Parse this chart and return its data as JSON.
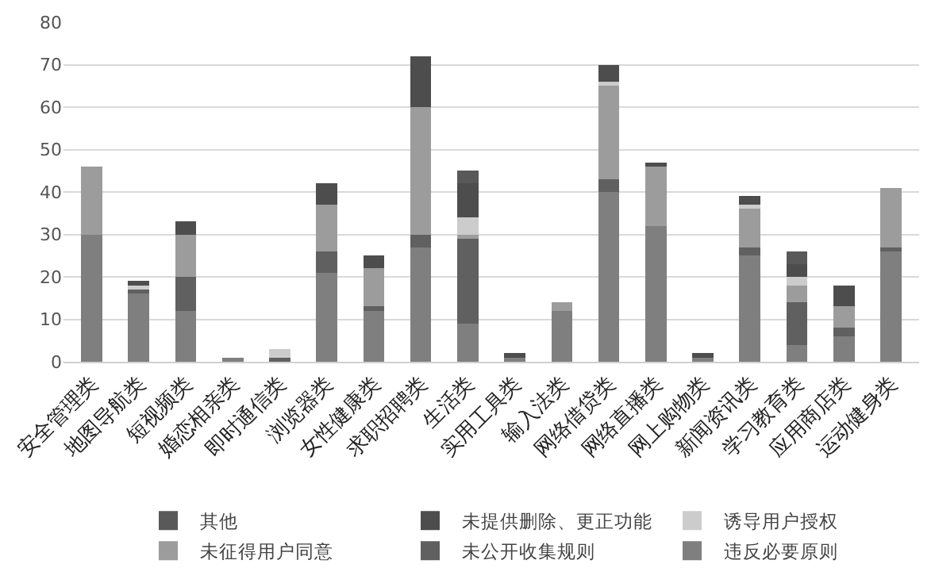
{
  "chart_data": {
    "type": "bar",
    "stacked": true,
    "categories": [
      "安全管理类",
      "地图导航类",
      "短视频类",
      "婚恋相亲类",
      "即时通信类",
      "浏览器类",
      "女性健康类",
      "求职招聘类",
      "生活类",
      "实用工具类",
      "输入法类",
      "网络借贷类",
      "网络直播类",
      "网上购物类",
      "新闻资讯类",
      "学习教育类",
      "应用商店类",
      "运动健身类"
    ],
    "series": [
      {
        "name": "违反必要原则",
        "color": "#7f7f7f",
        "values": [
          30,
          16,
          12,
          1,
          0,
          21,
          12,
          27,
          9,
          1,
          12,
          40,
          32,
          1,
          25,
          4,
          6,
          26
        ]
      },
      {
        "name": "未公开收集规则",
        "color": "#606060",
        "values": [
          0,
          1,
          8,
          0,
          1,
          5,
          1,
          3,
          20,
          0,
          0,
          3,
          0,
          0,
          2,
          10,
          2,
          1
        ]
      },
      {
        "name": "未征得用户同意",
        "color": "#9c9c9c",
        "values": [
          16,
          0,
          10,
          0,
          0,
          11,
          9,
          30,
          1,
          0,
          2,
          22,
          14,
          0,
          9,
          4,
          5,
          14
        ]
      },
      {
        "name": "诱导用户授权",
        "color": "#cccccc",
        "values": [
          0,
          1,
          0,
          0,
          2,
          0,
          0,
          0,
          4,
          0,
          0,
          1,
          0,
          0,
          1,
          2,
          0,
          0
        ]
      },
      {
        "name": "未提供删除、更正功能",
        "color": "#4d4d4d",
        "values": [
          0,
          1,
          3,
          0,
          0,
          5,
          3,
          12,
          8,
          1,
          0,
          4,
          1,
          1,
          2,
          3,
          5,
          0
        ]
      },
      {
        "name": "其他",
        "color": "#595959",
        "values": [
          0,
          0,
          0,
          0,
          0,
          0,
          0,
          0,
          3,
          0,
          0,
          0,
          0,
          0,
          0,
          3,
          0,
          0
        ]
      }
    ],
    "ylim": [
      0,
      80
    ],
    "yticks": [
      0,
      10,
      20,
      30,
      40,
      50,
      60,
      70,
      80
    ],
    "grid": "y",
    "legend": "bottom"
  }
}
